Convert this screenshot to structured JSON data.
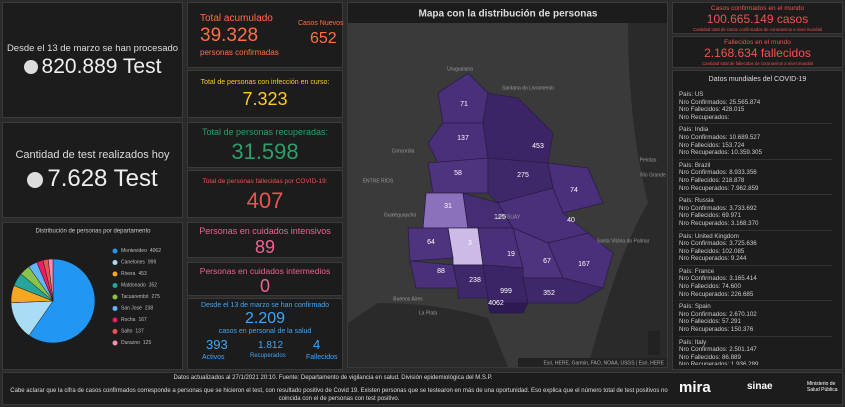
{
  "tests_total": {
    "label": "Desde el 13 de marzo se han procesado",
    "value": "820.889 Test"
  },
  "tests_today": {
    "label": "Cantidad de test realizados hoy",
    "value": "7.628 Test"
  },
  "confirmed": {
    "label": "Total acumulado",
    "value": "39.328",
    "sub": "personas confirmadas",
    "new_label": "Casos Nuevos",
    "new_value": "652"
  },
  "active": {
    "label": "Total de personas con infección en curso:",
    "value": "7.323"
  },
  "recovered": {
    "label": "Total de personas recuperadas:",
    "value": "31.598"
  },
  "deceased": {
    "label": "Total de personas fallecidas por COVID-19:",
    "value": "407"
  },
  "icu": {
    "label": "Personas en cuidados intensivos",
    "value": "89"
  },
  "intermediate": {
    "label": "Personas en cuidados intermedios",
    "value": "0"
  },
  "health_staff": {
    "label": "Desde el 13 de marzo se han confirmado",
    "value": "2.209",
    "sub": "casos en personal de la salud",
    "active": "393",
    "active_label": "Activos",
    "recovered": "1.812",
    "recovered_label": "Recuperados",
    "deceased": "4",
    "deceased_label": "Fallecidos"
  },
  "map": {
    "title": "Mapa con la distribución de personas",
    "labels": [
      "71",
      "137",
      "453",
      "58",
      "275",
      "74",
      "31",
      "125",
      "40",
      "64",
      "3",
      "19",
      "67",
      "167",
      "88",
      "238",
      "999",
      "352",
      "4062"
    ],
    "places": [
      "Uruguaiana",
      "Santana do Livramento",
      "Concordia",
      "ENTRE RÍOS",
      "Gualeguaychú",
      "URUGUAY",
      "Pelotas",
      "Rio Grande",
      "Santa Vitória do Palmar",
      "Buenos Aires",
      "La Plata"
    ],
    "attribution": "Esri, HERE, Garmin, FAO, NOAA, USGS | Esri, HERE"
  },
  "world_cases": {
    "label": "Casos confirmados en el mundo",
    "value": "100.665.149 casos",
    "sub": "Cantidad total de casos confirmados de coronavirus a nivel mundial"
  },
  "world_deaths": {
    "label": "Fallecidos en el mundo",
    "value": "2.168.634 fallecidos",
    "sub": "Cantidad total de fallecidos de coronavirus a nivel mundial"
  },
  "world_list": {
    "title": "Datos mundiales del COVID-19",
    "entries": [
      [
        "País: US",
        "Nro Confirmados: 25.565.874",
        "Nro Fallecidos: 428.015",
        "Nro Recuperados:"
      ],
      [
        "País: India",
        "Nro Confirmados: 10.689.527",
        "Nro Fallecidos: 153.724",
        "Nro Recuperados: 10.359.305"
      ],
      [
        "País: Brazil",
        "Nro Confirmados: 8.933.356",
        "Nro Fallecidos: 218.878",
        "Nro Recuperados: 7.962.859"
      ],
      [
        "País: Russia",
        "Nro Confirmados: 3.733.692",
        "Nro Fallecidos: 69.971",
        "Nro Recuperados: 3.168.370"
      ],
      [
        "País: United Kingdom",
        "Nro Confirmados: 3.725.636",
        "Nro Fallecidos: 102.085",
        "Nro Recuperados: 9.244"
      ],
      [
        "País: France",
        "Nro Confirmados: 3.165.414",
        "Nro Fallecidos: 74.600",
        "Nro Recuperados: 226.685"
      ],
      [
        "País: Spain",
        "Nro Confirmados: 2.670.102",
        "Nro Fallecidos: 57.291",
        "Nro Recuperados: 150.376"
      ],
      [
        "País: Italy",
        "Nro Confirmados: 2.501.147",
        "Nro Fallecidos: 86.889",
        "Nro Recuperados: 1.936.289"
      ]
    ]
  },
  "footer": {
    "updated": "Datos actualizados al 27/1/2021 20:10. Fuente: Departamento de vigilancia en salud. División epidemiológica del M.S.P.",
    "note": "Cabe aclarar que la cifra de casos confirmados corresponde a personas que se hicieron el test, con resultado positivo de Covid 19. Existen personas que se testearon en más de una oportunidad. Eso explica que el número total de test positivos no coincida con el de personas con test positivo.",
    "logos": [
      "mira",
      "sinae",
      "Ministerio de Salud Pública"
    ]
  },
  "chart_data": {
    "type": "pie",
    "title": "Distribución de personas por departamento",
    "categories": [
      "Montevideo",
      "Canelones",
      "Rivera",
      "Maldonado",
      "Tacuarembó",
      "San José",
      "Rocha",
      "Salto",
      "Durazno"
    ],
    "values": [
      4062,
      999,
      453,
      352,
      275,
      238,
      167,
      137,
      125
    ],
    "colors": [
      "#2196f3",
      "#a9dcf5",
      "#f5a623",
      "#26a69a",
      "#8bc34a",
      "#64b5f6",
      "#e91e63",
      "#ef5350",
      "#f48fb1"
    ]
  }
}
